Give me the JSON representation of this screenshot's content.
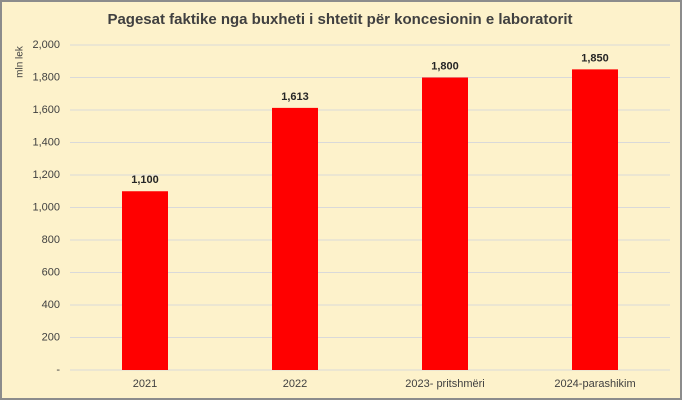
{
  "chart_data": {
    "type": "bar",
    "title": "Pagesat faktike nga buxheti i shtetit për koncesionin e laboratorit",
    "y_label": "mln lek",
    "categories": [
      "2021",
      "2022",
      "2023- pritshmëri",
      "2024-parashikim"
    ],
    "values": [
      1100,
      1613,
      1800,
      1850
    ],
    "value_labels": [
      "1,100",
      "1,613",
      "1,800",
      "1,850"
    ],
    "color": "#ff0000",
    "ylim": [
      0,
      2000
    ],
    "yticks": [
      {
        "value": 0,
        "label": "-"
      },
      200,
      400,
      600,
      800,
      {
        "value": 1000,
        "label": "1,000"
      },
      {
        "value": 1200,
        "label": "1,200"
      },
      {
        "value": 1400,
        "label": "1,400"
      },
      {
        "value": 1600,
        "label": "1,600"
      },
      {
        "value": 1800,
        "label": "1,800"
      },
      {
        "value": 2000,
        "label": "2,000"
      }
    ],
    "grid": true
  }
}
